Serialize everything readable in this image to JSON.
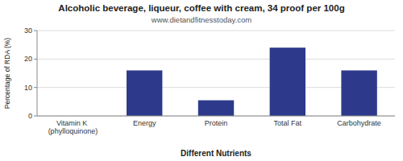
{
  "chart_data": {
    "type": "bar",
    "title": "Alcoholic beverage, liqueur, coffee with cream, 34 proof per 100g",
    "subtitle": "www.dietandfitnesstoday.com",
    "x_label": "Different Nutrients",
    "y_label": "Percentage of RDA (%)",
    "categories": [
      "Vitamin K (phylloquinone)",
      "Energy",
      "Protein",
      "Total Fat",
      "Carbohydrate"
    ],
    "values": [
      0,
      16,
      5.5,
      24,
      16
    ],
    "color": "#2d3a8c",
    "ylim": [
      0,
      30
    ],
    "yticks": [
      0,
      10,
      20,
      30
    ],
    "grid": true
  }
}
